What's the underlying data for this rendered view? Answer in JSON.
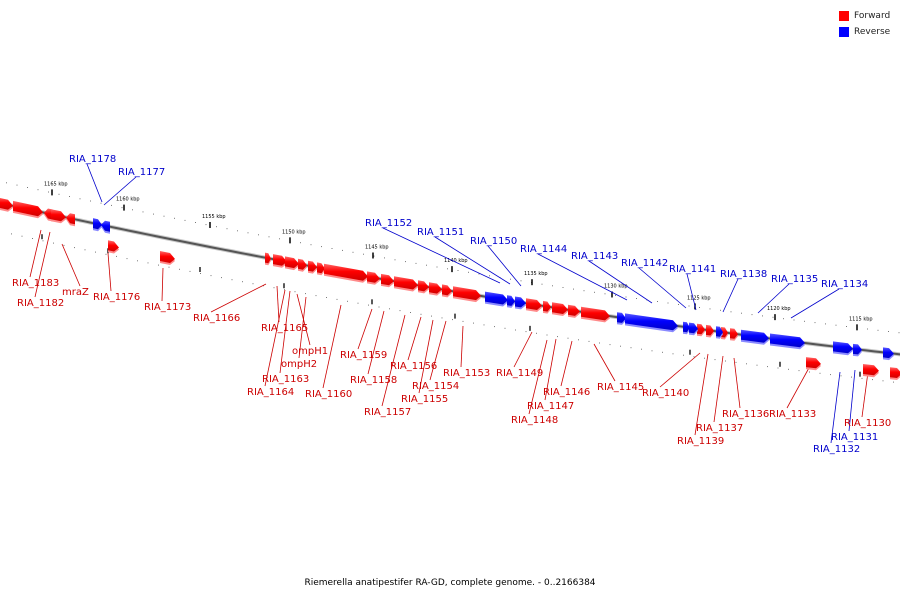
{
  "legend": {
    "forward": {
      "label": "Forward",
      "color": "#ff0000"
    },
    "reverse": {
      "label": "Reverse",
      "color": "#0000ff"
    }
  },
  "caption": "Riemerella anatipestifer RA-GD, complete genome. - 0..2166384",
  "ticks": [
    "1165 kbp",
    "1160 kbp",
    "1155 kbp",
    "1150 kbp",
    "1145 kbp",
    "1140 kbp",
    "1135 kbp",
    "1130 kbp",
    "1125 kbp",
    "1120 kbp",
    "1115 kbp"
  ],
  "genes_forward": [
    "RIA_1183",
    "RIA_1182",
    "mraZ",
    "RIA_1176",
    "RIA_1173",
    "RIA_1166",
    "RIA_1165",
    "ompH1",
    "ompH2",
    "RIA_1163",
    "RIA_1164",
    "RIA_1160",
    "RIA_1159",
    "RIA_1158",
    "RIA_1157",
    "RIA_1156",
    "RIA_1155",
    "RIA_1154",
    "RIA_1153",
    "RIA_1149",
    "RIA_1148",
    "RIA_1147",
    "RIA_1146",
    "RIA_1145",
    "RIA_1140",
    "RIA_1139",
    "RIA_1137",
    "RIA_1136",
    "RIA_1133",
    "RIA_1130"
  ],
  "genes_reverse": [
    "RIA_1178",
    "RIA_1177",
    "RIA_1152",
    "RIA_1151",
    "RIA_1150",
    "RIA_1144",
    "RIA_1143",
    "RIA_1142",
    "RIA_1141",
    "RIA_1138",
    "RIA_1135",
    "RIA_1134",
    "RIA_1131",
    "RIA_1132"
  ]
}
